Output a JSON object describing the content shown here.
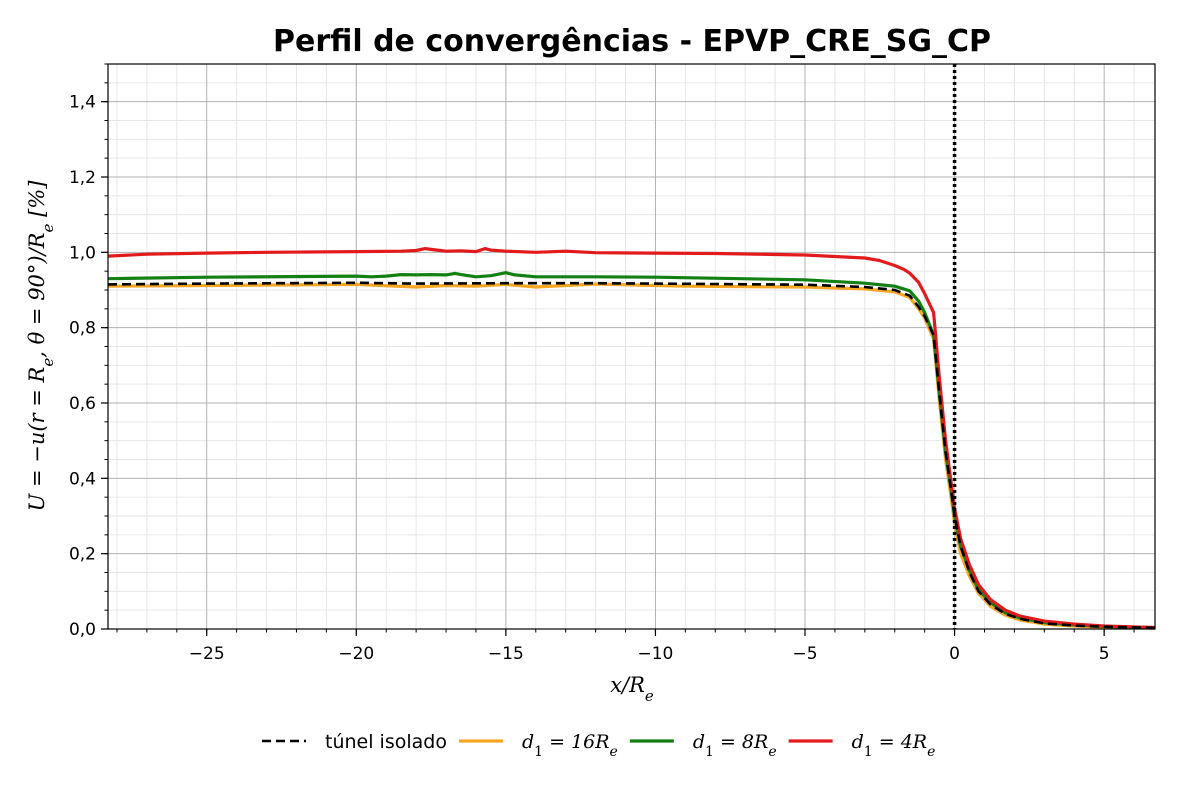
{
  "chart_data": {
    "type": "line",
    "title": "Perfil de convergências - EPVP_CRE_SG_CP",
    "xlabel": "x/R_e",
    "ylabel": "U = −u(r = R_e, θ = 90°)/R_e [%]",
    "xlim": [
      -28.3,
      6.7
    ],
    "ylim": [
      0.0,
      1.5
    ],
    "x_ticks": [
      -25,
      -20,
      -15,
      -10,
      -5,
      0,
      5
    ],
    "x_tick_labels": [
      "−25",
      "−20",
      "−15",
      "−10",
      "−5",
      "0",
      "5"
    ],
    "y_ticks": [
      0.0,
      0.2,
      0.4,
      0.6,
      0.8,
      1.0,
      1.2,
      1.4
    ],
    "y_tick_labels": [
      "0,0",
      "0,2",
      "0,4",
      "0,6",
      "0,8",
      "1,0",
      "1,2",
      "1,4"
    ],
    "grid": true,
    "minor_grid": true,
    "legend_position": "bottom-center",
    "vline": {
      "x": 0,
      "style": "dotted",
      "color": "#000000"
    },
    "series": [
      {
        "name": "túnel isolado",
        "legend_parts": [
          "túnel isolado"
        ],
        "color": "#000000",
        "dash": "dashed",
        "x": [
          -28.3,
          -25,
          -20,
          -18,
          -15,
          -12,
          -10,
          -5,
          -3,
          -2,
          -1.5,
          -1.2,
          -1.0,
          -0.7,
          -0.5,
          -0.3,
          -0.1,
          0,
          0.2,
          0.5,
          0.8,
          1.2,
          1.7,
          2.2,
          3,
          4,
          5,
          6.7
        ],
        "y": [
          0.915,
          0.917,
          0.919,
          0.917,
          0.918,
          0.918,
          0.917,
          0.914,
          0.908,
          0.9,
          0.885,
          0.855,
          0.83,
          0.78,
          0.62,
          0.47,
          0.36,
          0.3,
          0.22,
          0.15,
          0.1,
          0.065,
          0.04,
          0.027,
          0.015,
          0.009,
          0.006,
          0.003
        ]
      },
      {
        "name": "d_1 = 16R_e",
        "legend_parts": [
          "d",
          "1",
          " = 16R",
          "e"
        ],
        "color": "#f5a623",
        "dash": "solid",
        "x": [
          -28.3,
          -25,
          -20,
          -18,
          -17,
          -16,
          -15,
          -14,
          -13,
          -12,
          -10,
          -9,
          -5,
          -3,
          -2,
          -1.5,
          -1.2,
          -1.0,
          -0.7,
          -0.5,
          -0.3,
          -0.1,
          0,
          0.2,
          0.5,
          0.8,
          1.2,
          1.7,
          2.2,
          3,
          4,
          5,
          6.7
        ],
        "y": [
          0.91,
          0.912,
          0.915,
          0.908,
          0.912,
          0.91,
          0.915,
          0.908,
          0.912,
          0.916,
          0.912,
          0.91,
          0.908,
          0.903,
          0.895,
          0.88,
          0.85,
          0.825,
          0.77,
          0.6,
          0.45,
          0.34,
          0.28,
          0.2,
          0.14,
          0.095,
          0.06,
          0.037,
          0.024,
          0.013,
          0.008,
          0.005,
          0.002
        ]
      },
      {
        "name": "d_1 = 8R_e",
        "legend_parts": [
          "d",
          "1",
          " = 8R",
          "e"
        ],
        "color": "#138013",
        "dash": "solid",
        "x": [
          -28.3,
          -25,
          -20,
          -19.5,
          -19,
          -18.5,
          -18,
          -17.5,
          -17,
          -16.7,
          -16.5,
          -16,
          -15.5,
          -15,
          -14.7,
          -14,
          -12,
          -10,
          -5,
          -3,
          -2,
          -1.5,
          -1.2,
          -1.0,
          -0.7,
          -0.5,
          -0.3,
          -0.1,
          0,
          0.2,
          0.5,
          0.8,
          1.2,
          1.7,
          2.2,
          3,
          4,
          5,
          6.7
        ],
        "y": [
          0.93,
          0.934,
          0.937,
          0.935,
          0.937,
          0.941,
          0.94,
          0.941,
          0.94,
          0.944,
          0.941,
          0.935,
          0.938,
          0.946,
          0.94,
          0.935,
          0.935,
          0.934,
          0.927,
          0.918,
          0.91,
          0.898,
          0.87,
          0.84,
          0.78,
          0.62,
          0.47,
          0.36,
          0.3,
          0.22,
          0.155,
          0.105,
          0.07,
          0.043,
          0.029,
          0.017,
          0.011,
          0.007,
          0.003
        ]
      },
      {
        "name": "d_1 = 4R_e",
        "legend_parts": [
          "d",
          "1",
          " = 4R",
          "e"
        ],
        "color": "#e31a1c",
        "dash": "solid",
        "x": [
          -28.3,
          -27,
          -25,
          -23,
          -20,
          -18.5,
          -18,
          -17.7,
          -17.3,
          -17,
          -16.5,
          -16,
          -15.7,
          -15.5,
          -15,
          -14,
          -13,
          -12,
          -10,
          -8,
          -5,
          -3,
          -2.5,
          -2,
          -1.7,
          -1.5,
          -1.2,
          -1.0,
          -0.7,
          -0.5,
          -0.3,
          -0.1,
          0,
          0.2,
          0.5,
          0.8,
          1.2,
          1.7,
          2.2,
          3,
          4,
          5,
          6.7
        ],
        "y": [
          0.99,
          0.995,
          0.998,
          1.0,
          1.002,
          1.003,
          1.005,
          1.01,
          1.006,
          1.003,
          1.004,
          1.002,
          1.01,
          1.006,
          1.003,
          1.0,
          1.003,
          0.999,
          0.998,
          0.997,
          0.993,
          0.985,
          0.978,
          0.965,
          0.955,
          0.945,
          0.92,
          0.89,
          0.84,
          0.66,
          0.5,
          0.38,
          0.32,
          0.24,
          0.17,
          0.118,
          0.078,
          0.05,
          0.034,
          0.021,
          0.013,
          0.008,
          0.004
        ]
      }
    ]
  }
}
